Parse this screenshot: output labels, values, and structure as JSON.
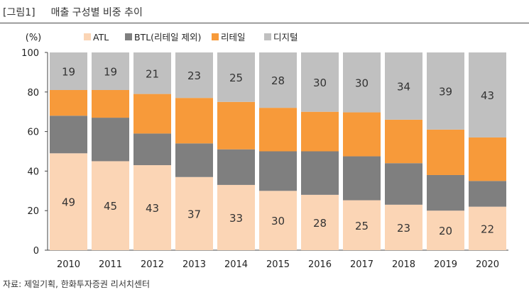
{
  "figure": {
    "number": "[그림1]",
    "title": "매출 구성별 비중 추이",
    "source": "자료: 제일기획, 한화투자증권 리서치센터"
  },
  "chart_data": {
    "type": "bar",
    "stacked": true,
    "unit_label": "(%)",
    "categories": [
      "2010",
      "2011",
      "2012",
      "2013",
      "2014",
      "2015",
      "2016",
      "2017",
      "2018",
      "2019",
      "2020"
    ],
    "series": [
      {
        "name": "ATL",
        "color": "#fbd5b5",
        "values": [
          49,
          45,
          43,
          37,
          33,
          30,
          28,
          25,
          23,
          20,
          22
        ],
        "labeled": true
      },
      {
        "name": "BTL(리테일 제외)",
        "color": "#7f7f7f",
        "values": [
          19,
          22,
          16,
          17,
          18,
          20,
          22,
          22,
          21,
          18,
          13
        ],
        "labeled": false
      },
      {
        "name": "리테일",
        "color": "#f79a3a",
        "values": [
          13,
          14,
          20,
          23,
          24,
          22,
          20,
          22,
          22,
          23,
          22
        ],
        "labeled": false
      },
      {
        "name": "디지털",
        "color": "#c0c0c0",
        "values": [
          19,
          19,
          21,
          23,
          25,
          28,
          30,
          30,
          34,
          39,
          43
        ],
        "labeled": true
      }
    ],
    "ylim": [
      0,
      100
    ],
    "yticks": [
      0,
      20,
      40,
      60,
      80,
      100
    ],
    "legend_position": "top",
    "grid": false
  }
}
